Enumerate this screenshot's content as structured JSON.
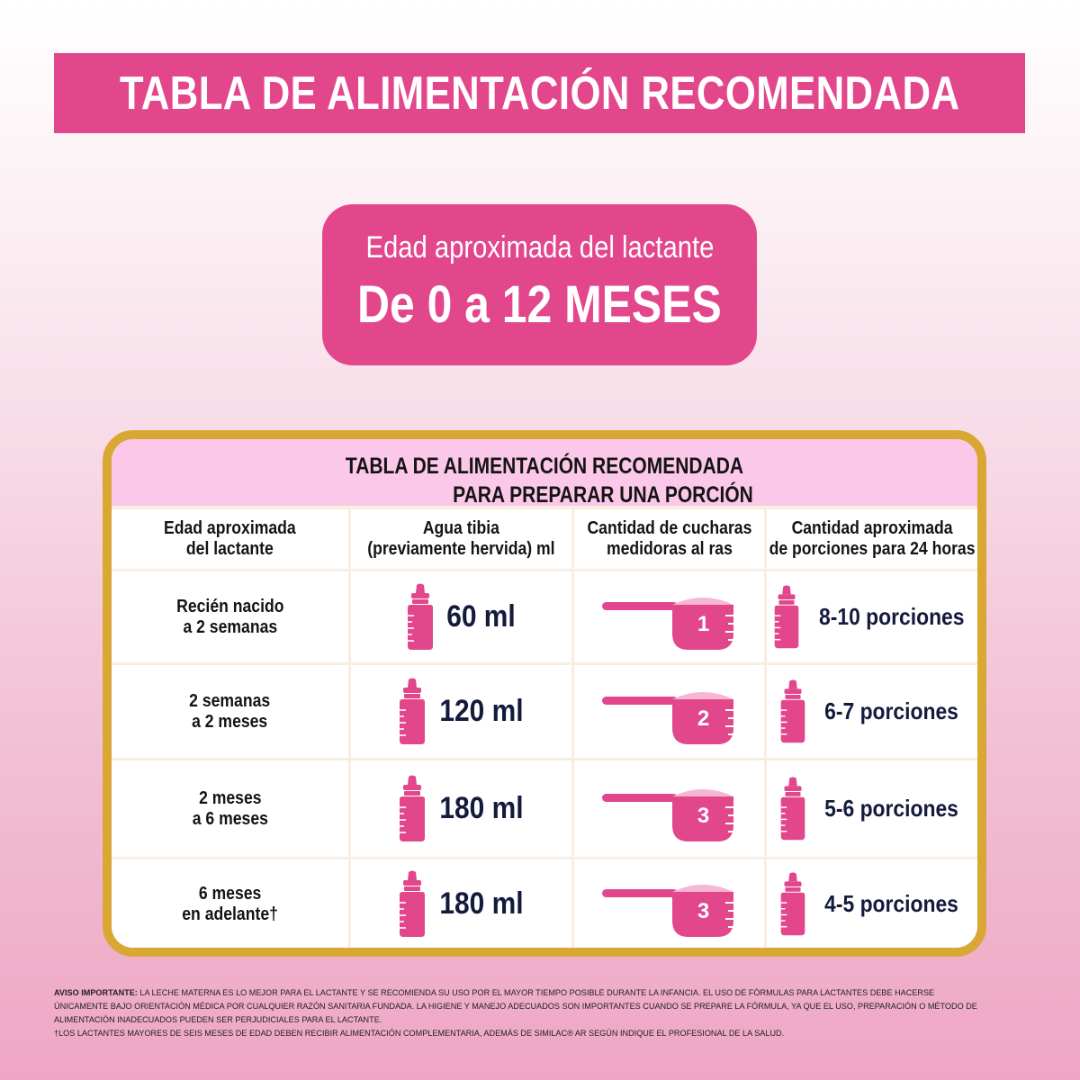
{
  "banner": {
    "title": "TABLA DE ALIMENTACIÓN RECOMENDADA"
  },
  "age_box": {
    "subtitle": "Edad aproximada del lactante",
    "range": "De 0 a 12 MESES"
  },
  "table": {
    "title_line1": "TABLA DE ALIMENTACIÓN RECOMENDADA",
    "title_line2": "PARA PREPARAR UNA PORCIÓN",
    "headers": [
      [
        "Edad aproximada",
        "del lactante"
      ],
      [
        "Agua tibia",
        "(previamente hervida) ml"
      ],
      [
        "Cantidad de cucharas",
        "medidoras al ras"
      ],
      [
        "Cantidad aproximada",
        "de porciones para 24 horas"
      ]
    ],
    "rows": [
      {
        "age": [
          "Recién nacido",
          "a 2 semanas"
        ],
        "water": "60 ml",
        "scoops": "1",
        "portions": "8-10 porciones"
      },
      {
        "age": [
          "2 semanas",
          "a 2 meses"
        ],
        "water": "120 ml",
        "scoops": "2",
        "portions": "6-7 porciones"
      },
      {
        "age": [
          "2 meses",
          "a 6 meses"
        ],
        "water": "180 ml",
        "scoops": "3",
        "portions": "5-6 porciones"
      },
      {
        "age": [
          "6 meses",
          "en adelante†"
        ],
        "water": "180 ml",
        "scoops": "3",
        "portions": "4-5 porciones"
      }
    ]
  },
  "notice": {
    "label": "AVISO IMPORTANTE:",
    "text": "La leche materna es lo mejor para el lactante y se recomienda su uso por el mayor tiempo posible durante la infancia. El uso de fórmulas para lactantes debe hacerse únicamente bajo orientación médica por cualquier razón sanitaria fundada. La higiene y manejo adecuados son importantes cuando se prepare la fórmula, ya que el uso, preparación o método de alimentación inadecuados pueden ser perjudiciales para el lactante.",
    "footnote": "†Los lactantes mayores de seis meses de edad deben recibir alimentación complementaria, además de Similac® AR según indique el profesional de la salud."
  },
  "colors": {
    "pink": "#e2468b",
    "gold": "#d9a733",
    "header_pink": "#fcc8ea",
    "navy": "#141a3c"
  },
  "icons": {
    "bottle": "baby-bottle-icon",
    "scoop": "measuring-scoop-icon"
  }
}
